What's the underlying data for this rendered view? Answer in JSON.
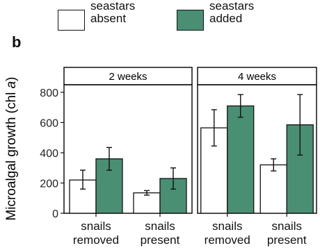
{
  "panel_letter": "b",
  "legend": [
    {
      "label": "seastars\nabsent",
      "color": "#ffffff"
    },
    {
      "label": "seastars\nadded",
      "color": "#4a8f74"
    }
  ],
  "chart_data": {
    "type": "bar",
    "ylabel_main": "Microalgal growth (chl ",
    "ylabel_italic": "a",
    "ylabel_close": ")",
    "ylim": [
      0,
      850
    ],
    "yticks": [
      0,
      200,
      400,
      600,
      800
    ],
    "grid": false,
    "facets": [
      {
        "title": "2 weeks",
        "categories": [
          "snails\nremoved",
          "snails\npresent"
        ],
        "series": [
          {
            "name": "seastars absent",
            "color": "#ffffff",
            "values": [
              220,
              135
            ],
            "err_low": [
              160,
              120
            ],
            "err_high": [
              285,
              150
            ]
          },
          {
            "name": "seastars added",
            "color": "#4a8f74",
            "values": [
              360,
              230
            ],
            "err_low": [
              285,
              160
            ],
            "err_high": [
              435,
              300
            ]
          }
        ]
      },
      {
        "title": "4 weeks",
        "categories": [
          "snails\nremoved",
          "snails\npresent"
        ],
        "series": [
          {
            "name": "seastars absent",
            "color": "#ffffff",
            "values": [
              565,
              320
            ],
            "err_low": [
              445,
              280
            ],
            "err_high": [
              685,
              360
            ]
          },
          {
            "name": "seastars added",
            "color": "#4a8f74",
            "values": [
              710,
              585
            ],
            "err_low": [
              635,
              385
            ],
            "err_high": [
              785,
              785
            ]
          }
        ]
      }
    ]
  }
}
